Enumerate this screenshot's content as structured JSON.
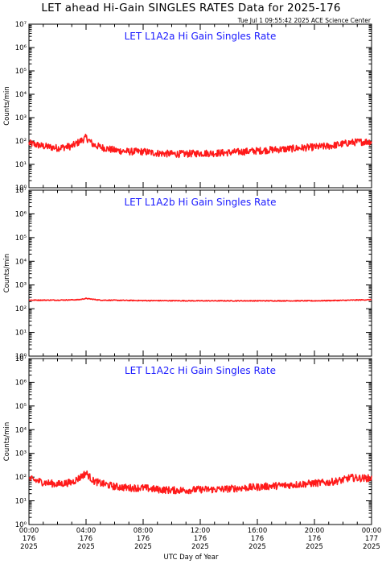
{
  "header": {
    "title": "LET ahead Hi-Gain SINGLES RATES Data for 2025-176",
    "timestamp": "Tue Jul  1 09:55:42 2025 ACE Science Center"
  },
  "x_axis_label": "UTC Day of Year",
  "chart_data": [
    {
      "type": "line",
      "title": "LET L1A2a Hi Gain Singles Rate",
      "ylabel": "Counts/min",
      "yscale": "log",
      "ylim": [
        1,
        10000000
      ],
      "xlim": [
        0,
        24
      ],
      "color": "#ff1a1a",
      "series": [
        {
          "x": [
            0,
            1,
            2,
            3,
            3.5,
            4,
            4.5,
            5,
            6,
            7,
            8,
            9,
            10,
            11,
            12,
            13,
            14,
            15,
            16,
            17,
            18,
            19,
            20,
            21,
            22,
            22.5,
            23,
            24
          ],
          "values": [
            80,
            60,
            50,
            60,
            90,
            140,
            70,
            55,
            40,
            35,
            35,
            30,
            28,
            28,
            30,
            30,
            32,
            35,
            38,
            42,
            45,
            50,
            55,
            60,
            75,
            85,
            90,
            95
          ]
        }
      ],
      "noise": 0.35
    },
    {
      "type": "line",
      "title": "LET L1A2b Hi Gain Singles Rate",
      "ylabel": "Counts/min",
      "yscale": "log",
      "ylim": [
        1,
        10000000
      ],
      "xlim": [
        0,
        24
      ],
      "color": "#ff1a1a",
      "series": [
        {
          "x": [
            0,
            2,
            3.5,
            4,
            5,
            8,
            12,
            16,
            20,
            22,
            24
          ],
          "values": [
            230,
            230,
            240,
            270,
            230,
            220,
            215,
            215,
            215,
            225,
            240
          ]
        }
      ],
      "noise": 0.04
    },
    {
      "type": "line",
      "title": "LET L1A2c Hi Gain Singles Rate",
      "ylabel": "Counts/min",
      "yscale": "log",
      "ylim": [
        1,
        10000000
      ],
      "xlim": [
        0,
        24
      ],
      "color": "#ff1a1a",
      "series": [
        {
          "x": [
            0,
            1,
            2,
            3,
            3.5,
            4,
            4.5,
            5,
            6,
            7,
            8,
            9,
            10,
            11,
            12,
            13,
            14,
            15,
            16,
            17,
            18,
            19,
            20,
            21,
            22,
            22.5,
            23,
            24
          ],
          "values": [
            85,
            60,
            50,
            60,
            90,
            150,
            70,
            55,
            40,
            35,
            35,
            30,
            28,
            28,
            30,
            30,
            32,
            35,
            38,
            42,
            45,
            50,
            55,
            60,
            75,
            95,
            90,
            90
          ]
        }
      ],
      "noise": 0.35
    }
  ],
  "ytick_labels": [
    "10⁰",
    "10¹",
    "10²",
    "10³",
    "10⁴",
    "10⁵",
    "10⁶",
    "10⁷"
  ],
  "xticks": [
    {
      "time": "00:00",
      "day": "176",
      "year": "2025"
    },
    {
      "time": "04:00",
      "day": "176",
      "year": "2025"
    },
    {
      "time": "08:00",
      "day": "176",
      "year": "2025"
    },
    {
      "time": "12:00",
      "day": "176",
      "year": "2025"
    },
    {
      "time": "16:00",
      "day": "176",
      "year": "2025"
    },
    {
      "time": "20:00",
      "day": "176",
      "year": "2025"
    },
    {
      "time": "00:00",
      "day": "177",
      "year": "2025"
    }
  ]
}
